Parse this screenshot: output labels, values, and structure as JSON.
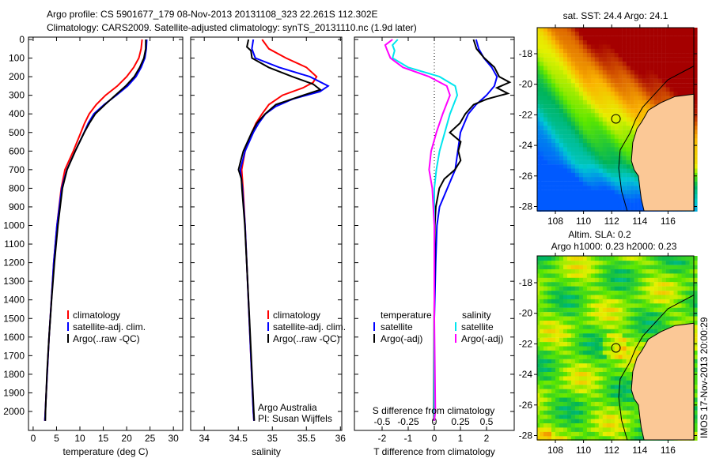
{
  "title": {
    "line1": "Argo profile: CS 5901677_179 08-Nov-2013 20131108_323 22.261S 112.302E",
    "line2": "Climatology: CARS2009. Satellite-adjusted climatology: synTS_20131110.nc (1.9d later)"
  },
  "colors": {
    "climatology": "#ff0000",
    "satellite": "#0000ff",
    "argo": "#000000",
    "sat_salinity": "#00e5ee",
    "argo_salinity": "#ff00ff",
    "land": "#fbc896"
  },
  "chart_data": [
    {
      "type": "line",
      "xlabel": "temperature (deg C)",
      "xlim": [
        -1,
        32
      ],
      "xticks": [
        "0",
        "5",
        "10",
        "15",
        "20",
        "25",
        "30"
      ],
      "xtick_values": [
        0,
        5,
        10,
        15,
        20,
        25,
        30
      ],
      "ylim": [
        0,
        2050
      ],
      "ytick_labels": [
        "0",
        "100",
        "200",
        "300",
        "400",
        "500",
        "600",
        "700",
        "800",
        "900",
        "1000",
        "1100",
        "1200",
        "1300",
        "1400",
        "1500",
        "1600",
        "1700",
        "1800",
        "1900",
        "2000"
      ],
      "ytick_values": [
        0,
        100,
        200,
        300,
        400,
        500,
        600,
        700,
        800,
        900,
        1000,
        1100,
        1200,
        1300,
        1400,
        1500,
        1600,
        1700,
        1800,
        1900,
        2000
      ],
      "legend": [
        "climatology",
        "satellite-adj. clim.",
        "Argo(..raw -QC)"
      ],
      "series": [
        {
          "name": "climatology",
          "color": "#ff0000",
          "depth": [
            0,
            50,
            100,
            150,
            200,
            250,
            300,
            350,
            400,
            450,
            500,
            600,
            700,
            800,
            1000,
            1200,
            1400,
            1600,
            1800,
            2000,
            2050
          ],
          "values": [
            23.3,
            23.1,
            22.6,
            21.5,
            20.0,
            18.0,
            15.5,
            13.5,
            12.0,
            11.0,
            10.2,
            8.6,
            6.8,
            6.0,
            5.1,
            4.4,
            3.9,
            3.4,
            3.0,
            2.6,
            2.5
          ]
        },
        {
          "name": "satellite-adj. clim.",
          "color": "#0000ff",
          "depth": [
            0,
            50,
            100,
            150,
            200,
            250,
            300,
            350,
            400,
            450,
            500,
            600,
            700,
            800,
            1000,
            1200,
            1400,
            1600,
            1800,
            2000,
            2050
          ],
          "values": [
            24.3,
            24.2,
            23.9,
            23.1,
            22.0,
            20.2,
            17.8,
            15.2,
            13.0,
            11.8,
            10.9,
            9.0,
            7.2,
            6.1,
            5.1,
            4.4,
            3.9,
            3.4,
            3.0,
            2.6,
            2.5
          ]
        },
        {
          "name": "Argo(..raw -QC)",
          "color": "#000000",
          "depth": [
            0,
            50,
            100,
            150,
            200,
            250,
            300,
            350,
            400,
            450,
            500,
            600,
            700,
            800,
            1000,
            1200,
            1400,
            1600,
            1800,
            2000,
            2050
          ],
          "values": [
            24.1,
            24.0,
            23.6,
            22.8,
            21.7,
            19.9,
            17.6,
            15.3,
            13.2,
            12.0,
            11.0,
            9.1,
            7.3,
            6.2,
            5.2,
            4.5,
            4.0,
            3.5,
            3.0,
            2.6,
            2.5
          ]
        }
      ]
    },
    {
      "type": "line",
      "xlabel": "salinity",
      "xlim": [
        33.8,
        36.02
      ],
      "xticks": [
        "34",
        "34.5",
        "35",
        "35.5",
        "36"
      ],
      "xtick_values": [
        34,
        34.5,
        35,
        35.5,
        36
      ],
      "ylim": [
        0,
        2050
      ],
      "legend": [
        "climatology",
        "satellite-adj. clim.",
        "Argo(..raw -QC)"
      ],
      "annotations": [
        "Argo Australia",
        "PI: Susan Wijffels"
      ],
      "series": [
        {
          "name": "climatology",
          "color": "#ff0000",
          "depth": [
            0,
            50,
            100,
            150,
            200,
            230,
            260,
            300,
            350,
            400,
            450,
            500,
            600,
            700,
            800,
            1000,
            1500,
            2000,
            2050
          ],
          "values": [
            34.85,
            34.95,
            35.2,
            35.5,
            35.65,
            35.6,
            35.45,
            35.15,
            34.95,
            34.85,
            34.76,
            34.7,
            34.6,
            34.55,
            34.57,
            34.6,
            34.66,
            34.72,
            34.73
          ]
        },
        {
          "name": "satellite-adj. clim.",
          "color": "#0000ff",
          "depth": [
            0,
            50,
            100,
            150,
            200,
            250,
            280,
            320,
            360,
            400,
            450,
            500,
            600,
            700,
            800,
            1000,
            1500,
            2000,
            2050
          ],
          "values": [
            34.72,
            34.7,
            34.75,
            35.1,
            35.55,
            35.82,
            35.7,
            35.3,
            35.05,
            34.9,
            34.8,
            34.72,
            34.6,
            34.53,
            34.56,
            34.6,
            34.66,
            34.72,
            34.73
          ]
        },
        {
          "name": "Argo(..raw -QC)",
          "color": "#000000",
          "depth": [
            0,
            40,
            60,
            100,
            150,
            200,
            240,
            270,
            300,
            350,
            400,
            450,
            500,
            600,
            650,
            700,
            750,
            800,
            1000,
            1500,
            2000,
            2050
          ],
          "values": [
            34.65,
            34.62,
            34.68,
            34.7,
            34.95,
            35.3,
            35.6,
            35.7,
            35.45,
            35.05,
            34.9,
            34.78,
            34.7,
            34.57,
            34.53,
            34.5,
            34.55,
            34.56,
            34.6,
            34.66,
            34.72,
            34.73
          ]
        }
      ]
    },
    {
      "type": "line",
      "xlabel": "T difference from climatology",
      "xlim": [
        -3.06,
        3.06
      ],
      "xticks": [
        "-2",
        "-1",
        "0",
        "1",
        "2"
      ],
      "xtick_values": [
        -2,
        -1,
        0,
        1,
        2
      ],
      "s_axis_label": "S difference from climatology",
      "s_xticks": [
        "-0.5",
        "-0.25",
        "0",
        "0.25",
        "0.5"
      ],
      "s_xtick_values": [
        -0.5,
        -0.25,
        0,
        0.25,
        0.5
      ],
      "legend_headers": [
        "temperature",
        "salinity"
      ],
      "legend": [
        "satellite",
        "Argo(-adj)",
        "satellite",
        "Argo(-adj)"
      ],
      "series": [
        {
          "name": "T satellite",
          "axis": "T",
          "color": "#0000ff",
          "depth": [
            0,
            50,
            100,
            150,
            200,
            250,
            300,
            350,
            400,
            500,
            600,
            700,
            800,
            900,
            1000,
            1200,
            1500,
            2000,
            2050
          ],
          "values": [
            1.6,
            1.7,
            1.9,
            2.2,
            2.4,
            2.3,
            2.0,
            1.6,
            1.3,
            1.0,
            0.9,
            0.8,
            0.5,
            0.2,
            0.1,
            0.05,
            0.0,
            0.0,
            0.0
          ]
        },
        {
          "name": "T Argo(-adj)",
          "axis": "T",
          "color": "#000000",
          "depth": [
            0,
            50,
            100,
            150,
            200,
            230,
            260,
            290,
            320,
            350,
            400,
            450,
            500,
            550,
            600,
            650,
            700,
            750,
            800,
            900,
            1000,
            1200,
            1500,
            2000,
            2050
          ],
          "values": [
            1.5,
            1.6,
            1.9,
            2.3,
            2.5,
            2.9,
            2.4,
            2.8,
            2.0,
            1.5,
            1.2,
            1.0,
            0.6,
            1.0,
            0.9,
            1.0,
            0.8,
            0.4,
            0.2,
            0.05,
            0.0,
            0.0,
            0.0,
            0.0,
            0.0
          ]
        },
        {
          "name": "S satellite",
          "axis": "S",
          "color": "#00e5ee",
          "depth": [
            0,
            30,
            60,
            100,
            150,
            200,
            250,
            300,
            400,
            500,
            600,
            700,
            800,
            1000,
            1500,
            2000,
            2050
          ],
          "values": [
            -0.35,
            -0.4,
            -0.38,
            -0.4,
            -0.25,
            0.05,
            0.2,
            0.22,
            0.15,
            0.1,
            0.05,
            0.02,
            0.0,
            0.0,
            0.0,
            0.0,
            0.0
          ]
        },
        {
          "name": "S Argo(-adj)",
          "axis": "S",
          "color": "#ff00ff",
          "depth": [
            0,
            30,
            60,
            100,
            150,
            200,
            250,
            300,
            400,
            500,
            600,
            700,
            800,
            1000,
            1500,
            2000,
            2050
          ],
          "values": [
            -0.4,
            -0.47,
            -0.45,
            -0.42,
            -0.3,
            -0.05,
            0.12,
            0.15,
            0.08,
            0.02,
            -0.03,
            -0.05,
            -0.02,
            0.0,
            0.0,
            0.01,
            0.0
          ]
        }
      ]
    }
  ],
  "maps": [
    {
      "title": "sat. SST: 24.4 Argo: 24.1",
      "xticks": [
        "108",
        "110",
        "112",
        "114",
        "116"
      ],
      "yticks": [
        "-18",
        "-20",
        "-22",
        "-24",
        "-26",
        "-28"
      ],
      "marker": {
        "lon": 112.302,
        "lat": -22.261
      }
    },
    {
      "title1": "Altim. SLA: 0.2",
      "title2": "Argo h1000: 0.23 h2000: 0.23",
      "xticks": [
        "108",
        "110",
        "112",
        "114",
        "116"
      ],
      "yticks": [
        "-18",
        "-20",
        "-22",
        "-24",
        "-26",
        "-28"
      ],
      "marker": {
        "lon": 112.302,
        "lat": -22.261
      }
    }
  ],
  "footer": "IMOS 17-Nov-2013 20:00:29"
}
